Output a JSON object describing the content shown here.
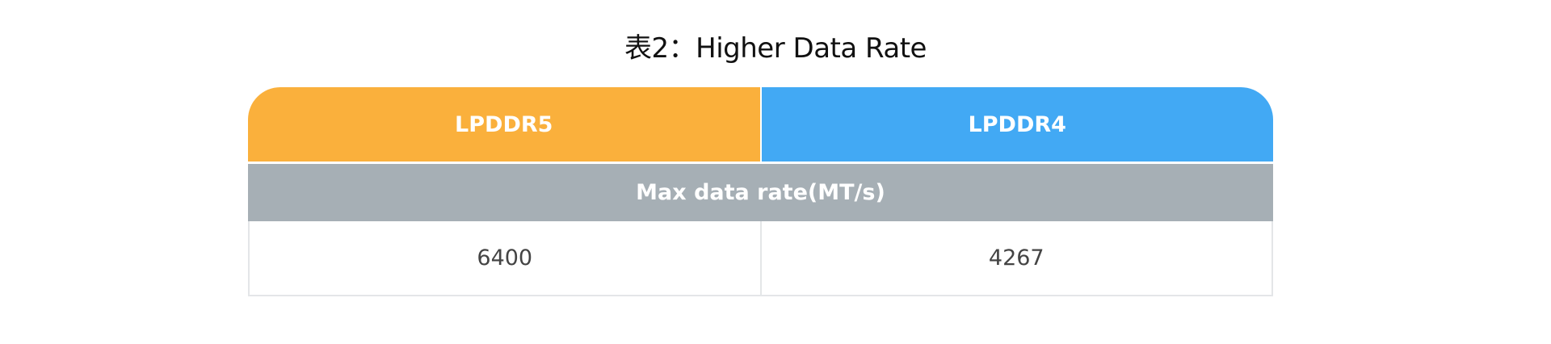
{
  "title": "表2：Higher Data Rate",
  "table": {
    "headers": [
      "LPDDR5",
      "LPDDR4"
    ],
    "row_label": "Max data rate(MT/s)",
    "values": [
      "6400",
      "4267"
    ]
  },
  "colors": {
    "lpddr5": "#fab03c",
    "lpddr4": "#42a9f4",
    "label_row": "#a6afb5"
  }
}
